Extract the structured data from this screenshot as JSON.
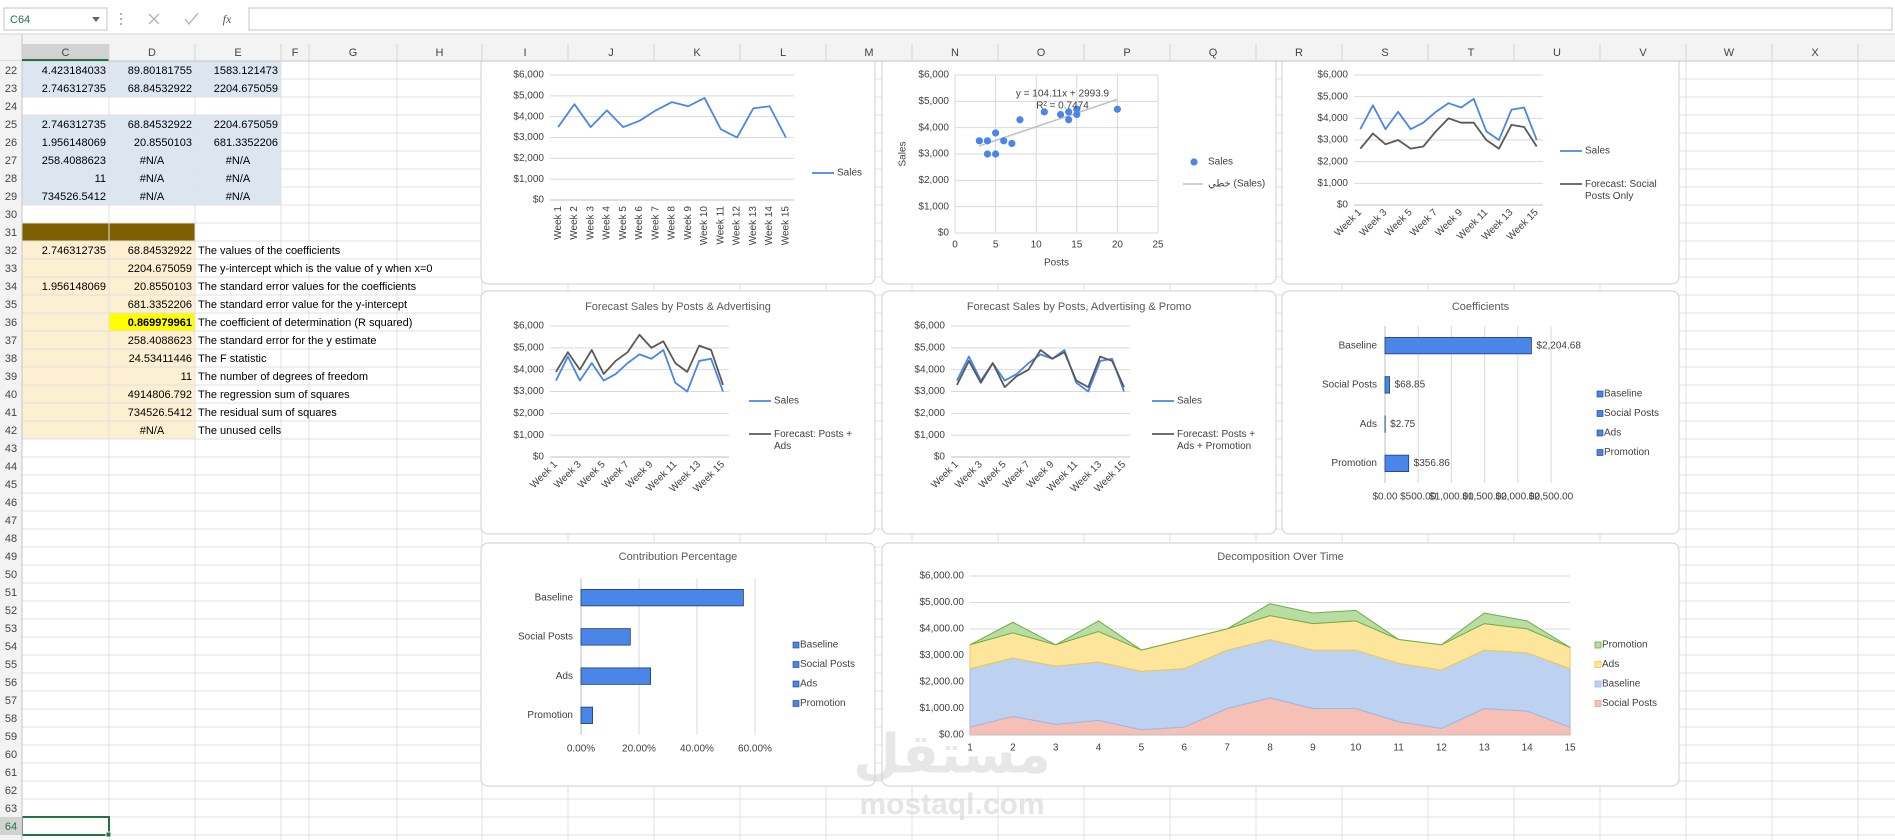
{
  "formula_bar": {
    "name_box": "C64",
    "fx": "fx"
  },
  "sheet": {
    "columns": [
      "C",
      "D",
      "E",
      "F",
      "G",
      "H",
      "I",
      "J",
      "K",
      "L",
      "M",
      "N",
      "O",
      "P",
      "Q",
      "R",
      "S",
      "T",
      "U",
      "V",
      "W",
      "X"
    ],
    "rows": [
      {
        "n": 22,
        "cells": {
          "C": "4.423184033",
          "D": "89.80181755",
          "E": "1583.121473"
        },
        "fill": {
          "C": "#dce6f1",
          "D": "#dce6f1",
          "E": "#dce6f1"
        }
      },
      {
        "n": 23,
        "cells": {
          "C": "2.746312735",
          "D": "68.84532922",
          "E": "2204.675059"
        },
        "fill": {
          "C": "#dce6f1",
          "D": "#dce6f1",
          "E": "#dce6f1"
        }
      },
      {
        "n": 24
      },
      {
        "n": 25,
        "cells": {
          "C": "2.746312735",
          "D": "68.84532922",
          "E": "2204.675059"
        },
        "fill": {
          "C": "#dce6f1",
          "D": "#dce6f1",
          "E": "#dce6f1"
        }
      },
      {
        "n": 26,
        "cells": {
          "C": "1.956148069",
          "D": "20.8550103",
          "E": "681.3352206"
        },
        "fill": {
          "C": "#dce6f1",
          "D": "#dce6f1",
          "E": "#dce6f1"
        }
      },
      {
        "n": 27,
        "cells": {
          "C": "258.4088623",
          "D": "#N/A",
          "E": "#N/A"
        },
        "fill": {
          "C": "#dce6f1",
          "D": "#dce6f1",
          "E": "#dce6f1"
        }
      },
      {
        "n": 28,
        "cells": {
          "C": "11",
          "D": "#N/A",
          "E": "#N/A"
        },
        "fill": {
          "C": "#dce6f1",
          "D": "#dce6f1",
          "E": "#dce6f1"
        }
      },
      {
        "n": 29,
        "cells": {
          "C": "734526.5412",
          "D": "#N/A",
          "E": "#N/A"
        },
        "fill": {
          "C": "#dce6f1",
          "D": "#dce6f1",
          "E": "#dce6f1"
        }
      },
      {
        "n": 30
      },
      {
        "n": 31,
        "fill": {
          "C": "#7f6000",
          "D": "#7f6000"
        }
      },
      {
        "n": 32,
        "cells": {
          "C": "2.746312735",
          "D": "68.84532922",
          "E": "The values of the coefficients"
        },
        "fill": {
          "C": "#fdefd2",
          "D": "#fdefd2"
        }
      },
      {
        "n": 33,
        "cells": {
          "D": "2204.675059",
          "E": "The y-intercept which is the value of y when x=0"
        },
        "fill": {
          "C": "#fdefd2",
          "D": "#fdefd2"
        }
      },
      {
        "n": 34,
        "cells": {
          "C": "1.956148069",
          "D": "20.8550103",
          "E": "The standard error values for the coefficients"
        },
        "fill": {
          "C": "#fdefd2",
          "D": "#fdefd2"
        }
      },
      {
        "n": 35,
        "cells": {
          "D": "681.3352206",
          "E": "The standard error value for the y-intercept"
        },
        "fill": {
          "C": "#fdefd2",
          "D": "#fdefd2"
        }
      },
      {
        "n": 36,
        "cells": {
          "D": "0.869979961",
          "E": "The coefficient of determination (R squared)"
        },
        "fill": {
          "C": "#fdefd2",
          "D": "#ffff00"
        },
        "bold": [
          "D"
        ]
      },
      {
        "n": 37,
        "cells": {
          "D": "258.4088623",
          "E": "The standard error for the y estimate"
        },
        "fill": {
          "C": "#fdefd2",
          "D": "#fdefd2"
        }
      },
      {
        "n": 38,
        "cells": {
          "D": "24.53411446",
          "E": "The F statistic"
        },
        "fill": {
          "C": "#fdefd2",
          "D": "#fdefd2"
        }
      },
      {
        "n": 39,
        "cells": {
          "D": "11",
          "E": "The number of degrees of freedom"
        },
        "fill": {
          "C": "#fdefd2",
          "D": "#fdefd2"
        }
      },
      {
        "n": 40,
        "cells": {
          "D": "4914806.792",
          "E": "The regression sum of squares"
        },
        "fill": {
          "C": "#fdefd2",
          "D": "#fdefd2"
        }
      },
      {
        "n": 41,
        "cells": {
          "D": "734526.5412",
          "E": "The residual sum of squares"
        },
        "fill": {
          "C": "#fdefd2",
          "D": "#fdefd2"
        }
      },
      {
        "n": 42,
        "cells": {
          "D": "#N/A",
          "E": "The unused cells"
        },
        "fill": {
          "C": "#fdefd2",
          "D": "#fdefd2"
        }
      },
      {
        "n": 43
      },
      {
        "n": 44
      },
      {
        "n": 45
      },
      {
        "n": 46
      },
      {
        "n": 47
      },
      {
        "n": 48
      },
      {
        "n": 49
      },
      {
        "n": 50
      },
      {
        "n": 51
      },
      {
        "n": 52
      },
      {
        "n": 53
      },
      {
        "n": 54
      },
      {
        "n": 55
      },
      {
        "n": 56
      },
      {
        "n": 57
      },
      {
        "n": 58
      },
      {
        "n": 59
      },
      {
        "n": 60
      },
      {
        "n": 61
      },
      {
        "n": 62
      },
      {
        "n": 63
      },
      {
        "n": 64
      }
    ]
  },
  "chart_data": [
    {
      "type": "line",
      "categories": [
        "Week 1",
        "Week 2",
        "Week 3",
        "Week 4",
        "Week 5",
        "Week 6",
        "Week 7",
        "Week 8",
        "Week 9",
        "Week 10",
        "Week 11",
        "Week 12",
        "Week 13",
        "Week 14",
        "Week 15"
      ],
      "series": [
        {
          "name": "Sales",
          "color": "#4a86e8",
          "values": [
            3500,
            4600,
            3500,
            4300,
            3500,
            3800,
            4300,
            4700,
            4500,
            4900,
            3400,
            3000,
            4400,
            4500,
            3000
          ]
        }
      ],
      "ylim": [
        0,
        6000
      ],
      "yticks": [
        {
          "value": 0,
          "label": "$0"
        },
        {
          "value": 1000,
          "label": "$1,000"
        },
        {
          "value": 2000,
          "label": "$2,000"
        },
        {
          "value": 3000,
          "label": "$3,000"
        },
        {
          "value": 4000,
          "label": "$4,000"
        },
        {
          "value": 5000,
          "label": "$5,000"
        },
        {
          "value": 6000,
          "label": "$6,000"
        }
      ],
      "grid": true
    },
    {
      "type": "scatter",
      "y_label": "Sales",
      "x_label": "Posts",
      "annotations": [
        "y = 104.11x + 2993.9",
        "R² = 0.7474"
      ],
      "series": [
        {
          "name": "Sales",
          "color": "#4a86e8",
          "x": [
            3,
            4,
            4,
            5,
            5,
            6,
            7,
            8,
            11,
            13,
            14,
            14,
            15,
            15,
            20
          ],
          "values": [
            3500,
            3500,
            3000,
            3000,
            3800,
            3500,
            3400,
            4300,
            4600,
            4500,
            4300,
            4600,
            4500,
            4700,
            4700
          ]
        }
      ],
      "trendline": {
        "name": "خطي (Sales)",
        "color": "#bfbfbf",
        "slope": 104.11,
        "intercept": 2993.9
      },
      "xlim": [
        0,
        25
      ],
      "xticks": [
        0,
        5,
        10,
        15,
        20,
        25
      ],
      "ylim": [
        0,
        6000
      ],
      "yticks": [
        {
          "value": 0,
          "label": "$0"
        },
        {
          "value": 1000,
          "label": "$1,000"
        },
        {
          "value": 2000,
          "label": "$2,000"
        },
        {
          "value": 3000,
          "label": "$3,000"
        },
        {
          "value": 4000,
          "label": "$4,000"
        },
        {
          "value": 5000,
          "label": "$5,000"
        },
        {
          "value": 6000,
          "label": "$6,000"
        }
      ],
      "grid": true
    },
    {
      "type": "line",
      "categories": [
        "Week 1",
        null,
        "Week 3",
        null,
        "Week 5",
        null,
        "Week 7",
        null,
        "Week 9",
        null,
        "Week 11",
        null,
        "Week 13",
        null,
        "Week 15"
      ],
      "series": [
        {
          "name": "Sales",
          "color": "#4a86e8",
          "values": [
            3500,
            4600,
            3500,
            4300,
            3500,
            3800,
            4300,
            4700,
            4500,
            4900,
            3400,
            3000,
            4400,
            4500,
            3000
          ]
        },
        {
          "name": "Forecast: Social Posts Only",
          "color": "#595959",
          "values": [
            2600,
            3300,
            2800,
            3000,
            2600,
            2700,
            3400,
            4000,
            3800,
            3800,
            3000,
            2600,
            3700,
            3600,
            2700
          ]
        }
      ],
      "ylim": [
        0,
        6000
      ],
      "yticks": [
        {
          "value": 0,
          "label": "$0"
        },
        {
          "value": 1000,
          "label": "$1,000"
        },
        {
          "value": 2000,
          "label": "$2,000"
        },
        {
          "value": 3000,
          "label": "$3,000"
        },
        {
          "value": 4000,
          "label": "$4,000"
        },
        {
          "value": 5000,
          "label": "$5,000"
        },
        {
          "value": 6000,
          "label": "$6,000"
        }
      ],
      "grid": true
    },
    {
      "type": "line",
      "title": "Forecast Sales by Posts & Advertising",
      "categories": [
        "Week 1",
        null,
        "Week 3",
        null,
        "Week 5",
        null,
        "Week 7",
        null,
        "Week 9",
        null,
        "Week 11",
        null,
        "Week 13",
        null,
        "Week 15"
      ],
      "series": [
        {
          "name": "Sales",
          "color": "#4a86e8",
          "values": [
            3500,
            4600,
            3500,
            4300,
            3500,
            3800,
            4300,
            4700,
            4500,
            4900,
            3400,
            3000,
            4400,
            4500,
            3000
          ]
        },
        {
          "name": "Forecast: Posts + Ads",
          "color": "#595959",
          "values": [
            3900,
            4800,
            4000,
            4900,
            3800,
            4400,
            4800,
            5600,
            5000,
            5300,
            4300,
            3900,
            5100,
            4900,
            3300
          ]
        }
      ],
      "ylim": [
        0,
        6000
      ],
      "yticks": [
        {
          "value": 0,
          "label": "$0"
        },
        {
          "value": 1000,
          "label": "$1,000"
        },
        {
          "value": 2000,
          "label": "$2,000"
        },
        {
          "value": 3000,
          "label": "$3,000"
        },
        {
          "value": 4000,
          "label": "$4,000"
        },
        {
          "value": 5000,
          "label": "$5,000"
        },
        {
          "value": 6000,
          "label": "$6,000"
        }
      ],
      "grid": true
    },
    {
      "type": "line",
      "title": "Forecast Sales by Posts, Advertising & Promo",
      "categories": [
        "Week 1",
        null,
        "Week 3",
        null,
        "Week 5",
        null,
        "Week 7",
        null,
        "Week 9",
        null,
        "Week 11",
        null,
        "Week 13",
        null,
        "Week 15"
      ],
      "series": [
        {
          "name": "Sales",
          "color": "#4a86e8",
          "values": [
            3500,
            4600,
            3500,
            4300,
            3500,
            3800,
            4300,
            4700,
            4500,
            4900,
            3400,
            3000,
            4400,
            4500,
            3000
          ]
        },
        {
          "name": "Forecast: Posts + Ads + Promotion",
          "color": "#595959",
          "values": [
            3300,
            4400,
            3400,
            4300,
            3200,
            3700,
            4000,
            4900,
            4500,
            4800,
            3500,
            3200,
            4600,
            4400,
            3200
          ]
        }
      ],
      "ylim": [
        0,
        6000
      ],
      "yticks": [
        {
          "value": 0,
          "label": "$0"
        },
        {
          "value": 1000,
          "label": "$1,000"
        },
        {
          "value": 2000,
          "label": "$2,000"
        },
        {
          "value": 3000,
          "label": "$3,000"
        },
        {
          "value": 4000,
          "label": "$4,000"
        },
        {
          "value": 5000,
          "label": "$5,000"
        },
        {
          "value": 6000,
          "label": "$6,000"
        }
      ],
      "grid": true
    },
    {
      "type": "hbar",
      "title": "Coefficients",
      "categories": [
        "Baseline",
        "Social Posts",
        "Ads",
        "Promotion"
      ],
      "values": [
        2204.68,
        68.85,
        2.75,
        356.86
      ],
      "value_labels": [
        "$2,204.68",
        "$68.85",
        "$2.75",
        "$356.86"
      ],
      "color": "#4a86e8",
      "xlim": [
        0,
        2500
      ],
      "xticks": [
        {
          "value": 0,
          "label": "$0.00"
        },
        {
          "value": 500,
          "label": "$500.00"
        },
        {
          "value": 1000,
          "label": "$1,000.00"
        },
        {
          "value": 1500,
          "label": "$1,500.00"
        },
        {
          "value": 2000,
          "label": "$2,000.00"
        },
        {
          "value": 2500,
          "label": "$2,500.00"
        }
      ],
      "grid": true
    },
    {
      "type": "hbar",
      "title": "Contribution Percentage",
      "categories": [
        "Baseline",
        "Social Posts",
        "Ads",
        "Promotion"
      ],
      "values": [
        56,
        17,
        24,
        4
      ],
      "color": "#4a86e8",
      "xlim": [
        0,
        60
      ],
      "xticks": [
        {
          "value": 0,
          "label": "0.00%"
        },
        {
          "value": 20,
          "label": "20.00%"
        },
        {
          "value": 40,
          "label": "40.00%"
        },
        {
          "value": 60,
          "label": "60.00%"
        }
      ],
      "grid": true
    },
    {
      "type": "area",
      "title": "Decomposition Over Time",
      "x": [
        1,
        2,
        3,
        4,
        5,
        6,
        7,
        8,
        9,
        10,
        11,
        12,
        13,
        14,
        15
      ],
      "series": [
        {
          "name": "Promotion",
          "color": "#b7dda3",
          "line_color": "#70ad47",
          "values": [
            0,
            400,
            0,
            400,
            0,
            0,
            0,
            450,
            400,
            400,
            0,
            0,
            400,
            300,
            0
          ]
        },
        {
          "name": "Ads",
          "color": "#fde59c",
          "line_color": "#f2c94c",
          "values": [
            900,
            950,
            800,
            1150,
            800,
            1100,
            800,
            900,
            1000,
            1100,
            900,
            950,
            1000,
            900,
            800
          ]
        },
        {
          "name": "Baseline",
          "color": "#bdd1f1",
          "line_color": "#9db8e6",
          "values": [
            2204.68,
            2204.68,
            2204.68,
            2204.68,
            2204.68,
            2204.68,
            2204.68,
            2204.68,
            2204.68,
            2204.68,
            2204.68,
            2204.68,
            2204.68,
            2204.68,
            2204.68
          ]
        },
        {
          "name": "Social Posts",
          "color": "#f6c0b6",
          "line_color": "#eca294",
          "values": [
            300,
            700,
            400,
            550,
            200,
            300,
            1000,
            1400,
            1000,
            1000,
            500,
            250,
            1000,
            900,
            300
          ]
        }
      ],
      "xlim": [
        1,
        15
      ],
      "xticks": [
        1,
        2,
        3,
        4,
        5,
        6,
        7,
        8,
        9,
        10,
        11,
        12,
        13,
        14,
        15
      ],
      "ylim": [
        0,
        6000
      ],
      "yticks": [
        {
          "value": 0,
          "label": "$0.00"
        },
        {
          "value": 1000,
          "label": "$1,000.00"
        },
        {
          "value": 2000,
          "label": "$2,000.00"
        },
        {
          "value": 3000,
          "label": "$3,000.00"
        },
        {
          "value": 4000,
          "label": "$4,000.00"
        },
        {
          "value": 5000,
          "label": "$5,000.00"
        },
        {
          "value": 6000,
          "label": "$6,000.00"
        }
      ],
      "grid": true
    }
  ],
  "watermark": {
    "logo": "مستقل",
    "url": "mostaql.com"
  }
}
